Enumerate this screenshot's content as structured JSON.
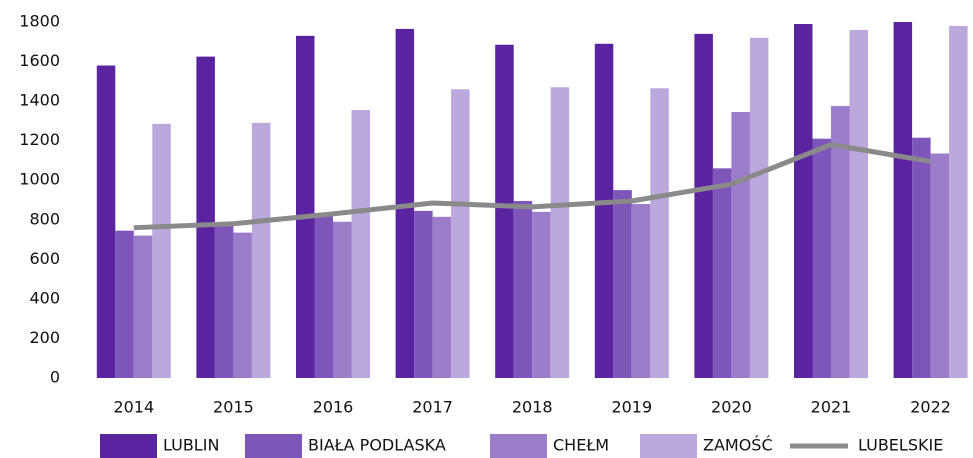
{
  "chart_data": {
    "type": "bar",
    "categories": [
      "2014",
      "2015",
      "2016",
      "2017",
      "2018",
      "2019",
      "2020",
      "2021",
      "2022"
    ],
    "series": [
      {
        "name": "LUBLIN",
        "color": "#5a24a0",
        "values": [
          1580,
          1625,
          1730,
          1765,
          1685,
          1690,
          1740,
          1790,
          1800
        ]
      },
      {
        "name": "BIAŁA PODLASKA",
        "color": "#7e55b8",
        "values": [
          745,
          775,
          825,
          845,
          895,
          950,
          1060,
          1210,
          1215
        ]
      },
      {
        "name": "CHEŁM",
        "color": "#9b7dc9",
        "values": [
          720,
          735,
          790,
          815,
          840,
          880,
          1345,
          1375,
          1135
        ]
      },
      {
        "name": "ZAMOŚĆ",
        "color": "#bba8dc",
        "values": [
          1285,
          1290,
          1355,
          1460,
          1470,
          1465,
          1720,
          1760,
          1780
        ]
      },
      {
        "name": "LUBELSKIE",
        "type": "line",
        "color": "#8a8a8a",
        "values": [
          760,
          780,
          830,
          885,
          865,
          895,
          980,
          1180,
          1095
        ]
      }
    ],
    "ylim": [
      0,
      1800
    ],
    "yticks": [
      0,
      200,
      400,
      600,
      800,
      1000,
      1200,
      1400,
      1600,
      1800
    ],
    "grid": false,
    "legend": "bottom"
  }
}
